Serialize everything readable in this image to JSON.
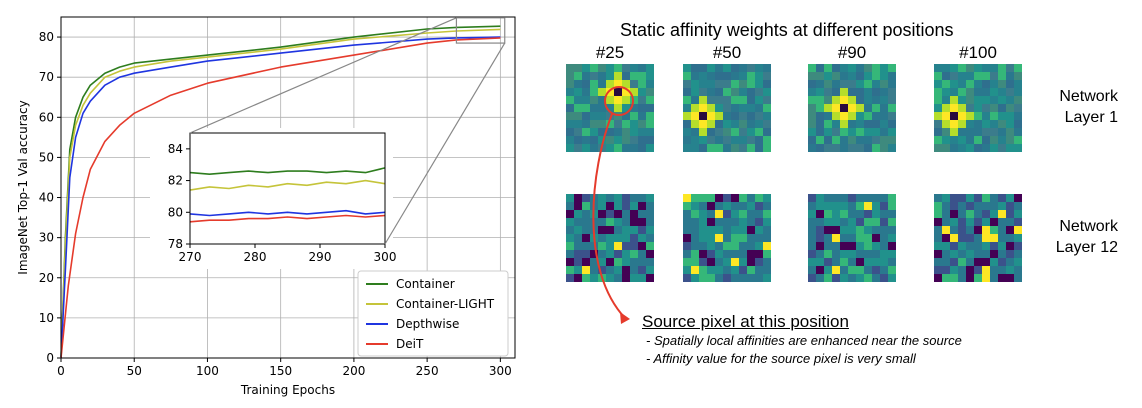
{
  "chart_data": [
    {
      "type": "line",
      "xlabel": "Training Epochs",
      "ylabel": "ImageNet Top-1 Val accuracy",
      "xlim": [
        0,
        310
      ],
      "ylim": [
        0,
        85
      ],
      "xticks": [
        "0",
        "50",
        "100",
        "150",
        "200",
        "250",
        "300"
      ],
      "yticks": [
        "0",
        "10",
        "20",
        "30",
        "40",
        "50",
        "60",
        "70",
        "80"
      ],
      "grid": true,
      "legend_position": "bottom-right",
      "series": [
        {
          "name": "Container",
          "color": "#2e7d1e",
          "x": [
            0,
            3,
            6,
            10,
            15,
            20,
            30,
            40,
            50,
            75,
            100,
            150,
            200,
            250,
            270,
            300
          ],
          "y": [
            0,
            30,
            52,
            60,
            65,
            68,
            71,
            72.5,
            73.5,
            74.5,
            75.5,
            77.5,
            80,
            82,
            82.4,
            82.7
          ]
        },
        {
          "name": "Container-LIGHT",
          "color": "#c5c43a",
          "x": [
            0,
            3,
            6,
            10,
            15,
            20,
            30,
            40,
            50,
            75,
            100,
            150,
            200,
            250,
            270,
            300
          ],
          "y": [
            0,
            28,
            50,
            58,
            63,
            66,
            70,
            71.5,
            72.5,
            74,
            75,
            77,
            79.5,
            81,
            81.5,
            81.9
          ]
        },
        {
          "name": "Depthwise",
          "color": "#1f35e0",
          "x": [
            0,
            3,
            6,
            10,
            15,
            20,
            30,
            40,
            50,
            75,
            100,
            150,
            200,
            250,
            270,
            300
          ],
          "y": [
            0,
            22,
            45,
            55,
            61,
            64,
            68,
            70,
            71,
            72.5,
            74,
            76,
            78,
            79.5,
            79.8,
            80
          ]
        },
        {
          "name": "DeiT",
          "color": "#e53b2c",
          "x": [
            0,
            5,
            10,
            15,
            20,
            30,
            40,
            50,
            75,
            100,
            150,
            200,
            250,
            270,
            300
          ],
          "y": [
            0,
            18,
            31,
            40,
            47,
            54,
            58,
            61,
            65.5,
            68.5,
            72.5,
            75.5,
            78.5,
            79.3,
            79.8
          ]
        }
      ]
    },
    {
      "type": "line",
      "title": "",
      "xlim": [
        270,
        300
      ],
      "ylim": [
        78,
        85
      ],
      "xticks": [
        "270",
        "280",
        "290",
        "300"
      ],
      "yticks": [
        "78",
        "80",
        "82",
        "84"
      ],
      "series": [
        {
          "name": "Container",
          "color": "#2e7d1e",
          "x": [
            270,
            273,
            276,
            279,
            282,
            285,
            288,
            291,
            294,
            297,
            300
          ],
          "y": [
            82.5,
            82.4,
            82.5,
            82.6,
            82.5,
            82.6,
            82.6,
            82.5,
            82.6,
            82.5,
            82.8
          ]
        },
        {
          "name": "Container-LIGHT",
          "color": "#c5c43a",
          "x": [
            270,
            273,
            276,
            279,
            282,
            285,
            288,
            291,
            294,
            297,
            300
          ],
          "y": [
            81.4,
            81.6,
            81.5,
            81.7,
            81.6,
            81.8,
            81.7,
            81.9,
            81.8,
            82.0,
            81.8
          ]
        },
        {
          "name": "Depthwise",
          "color": "#1f35e0",
          "x": [
            270,
            273,
            276,
            279,
            282,
            285,
            288,
            291,
            294,
            297,
            300
          ],
          "y": [
            79.9,
            79.8,
            79.9,
            80.0,
            79.9,
            80.0,
            79.9,
            80.0,
            80.1,
            79.9,
            80.0
          ]
        },
        {
          "name": "DeiT",
          "color": "#e53b2c",
          "x": [
            270,
            273,
            276,
            279,
            282,
            285,
            288,
            291,
            294,
            297,
            300
          ],
          "y": [
            79.4,
            79.5,
            79.5,
            79.6,
            79.6,
            79.7,
            79.6,
            79.7,
            79.8,
            79.7,
            79.8
          ]
        }
      ]
    },
    {
      "type": "heatmap",
      "title": "Static affinity weights at different positions",
      "columns": [
        "#25",
        "#50",
        "#90",
        "#100"
      ],
      "rows": [
        "Network\nLayer 1",
        "Network\nLayer 12"
      ],
      "colormap": "viridis"
    }
  ],
  "annotation": {
    "title": "Source pixel at this position",
    "lines": [
      "- Spatially local affinities are enhanced near the source",
      "- Affinity value for the source pixel is very small"
    ]
  }
}
